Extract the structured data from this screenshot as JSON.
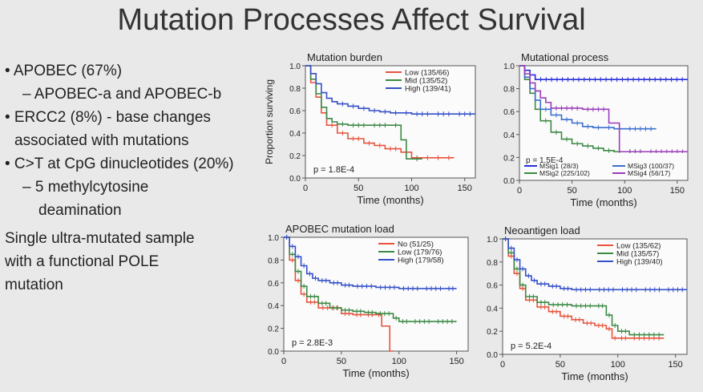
{
  "slide": {
    "title": "Mutation Processes Affect Survival",
    "bullets": [
      {
        "kind": "bullet",
        "text": "APOBEC (67%)"
      },
      {
        "kind": "dash",
        "text": "APOBEC-a and APOBEC-b"
      },
      {
        "kind": "bullet",
        "text": "ERCC2 (8%)  - base changes"
      },
      {
        "kind": "cont",
        "text": "associated with mutations"
      },
      {
        "kind": "bullet",
        "text": "C>T at CpG dinucleotides (20%)"
      },
      {
        "kind": "dash",
        "text": "5 methylcytosine"
      },
      {
        "kind": "cont2",
        "text": "deamination"
      },
      {
        "kind": "plain",
        "text": "Single ultra-mutated sample"
      },
      {
        "kind": "plain",
        "text": "with a functional POLE"
      },
      {
        "kind": "plain",
        "text": "mutation"
      }
    ]
  },
  "chart_data": [
    {
      "type": "line",
      "title": "Mutation burden",
      "xlabel": "Time (months)",
      "ylabel": "Proportion surviving",
      "xlim": [
        0,
        160
      ],
      "ylim": [
        0,
        1
      ],
      "xticks": [
        0,
        50,
        100,
        150
      ],
      "yticks": [
        "0.0",
        "0.2",
        "0.4",
        "0.6",
        "0.8",
        "1.0"
      ],
      "pvalue": "p = 1.8E-4",
      "series": [
        {
          "name": "Low (135/66)",
          "color": "#e8533d",
          "x": [
            0,
            5,
            10,
            15,
            20,
            30,
            40,
            55,
            65,
            75,
            90,
            100,
            110,
            120,
            130,
            140
          ],
          "y": [
            1.0,
            0.85,
            0.72,
            0.58,
            0.47,
            0.4,
            0.35,
            0.31,
            0.29,
            0.26,
            0.23,
            0.18,
            0.18,
            0.18,
            0.18,
            0.18
          ]
        },
        {
          "name": "Mid (135/52)",
          "color": "#3c8a46",
          "x": [
            0,
            5,
            10,
            15,
            20,
            25,
            30,
            40,
            60,
            80,
            90,
            95,
            100,
            110
          ],
          "y": [
            1.0,
            0.88,
            0.75,
            0.63,
            0.53,
            0.5,
            0.48,
            0.47,
            0.47,
            0.47,
            0.34,
            0.17,
            0.17,
            0.17
          ]
        },
        {
          "name": "High (139/41)",
          "color": "#3550c8",
          "x": [
            0,
            5,
            10,
            15,
            20,
            25,
            30,
            40,
            50,
            60,
            70,
            80,
            90,
            100,
            120,
            140,
            160
          ],
          "y": [
            1.0,
            0.93,
            0.84,
            0.76,
            0.71,
            0.68,
            0.66,
            0.64,
            0.62,
            0.6,
            0.59,
            0.58,
            0.58,
            0.57,
            0.57,
            0.57,
            0.57
          ]
        }
      ]
    },
    {
      "type": "line",
      "title": "Mutational process",
      "xlabel": "Time (months)",
      "ylabel": "",
      "xlim": [
        0,
        160
      ],
      "ylim": [
        0,
        1
      ],
      "xticks": [
        0,
        50,
        100,
        150
      ],
      "yticks": [
        "0.0",
        "0.2",
        "0.4",
        "0.6",
        "0.8",
        "1.0"
      ],
      "pvalue": "p = 1.5E-4",
      "series": [
        {
          "name": "MSig1 (28/3)",
          "color": "#2a2fd6",
          "x": [
            0,
            5,
            10,
            15,
            160
          ],
          "y": [
            1.0,
            0.96,
            0.92,
            0.88,
            0.88
          ]
        },
        {
          "name": "MSig2 (225/102)",
          "color": "#3c8a46",
          "x": [
            0,
            5,
            10,
            15,
            20,
            30,
            40,
            50,
            60,
            70,
            80,
            90,
            100,
            120
          ],
          "y": [
            1.0,
            0.88,
            0.76,
            0.62,
            0.52,
            0.42,
            0.36,
            0.32,
            0.3,
            0.28,
            0.26,
            0.25,
            0.25,
            0.25
          ]
        },
        {
          "name": "MSig3 (100/37)",
          "color": "#3b6fd0",
          "x": [
            0,
            5,
            10,
            15,
            20,
            30,
            40,
            50,
            60,
            70,
            80,
            90,
            100,
            130
          ],
          "y": [
            1.0,
            0.9,
            0.8,
            0.7,
            0.62,
            0.57,
            0.53,
            0.5,
            0.47,
            0.46,
            0.46,
            0.45,
            0.45,
            0.45
          ]
        },
        {
          "name": "MSig4 (56/17)",
          "color": "#9a3db8",
          "x": [
            0,
            5,
            10,
            15,
            20,
            25,
            30,
            60,
            85,
            90,
            95,
            100,
            120,
            160
          ],
          "y": [
            1.0,
            0.93,
            0.85,
            0.78,
            0.72,
            0.68,
            0.63,
            0.62,
            0.5,
            0.5,
            0.25,
            0.25,
            0.25,
            0.25
          ]
        }
      ]
    },
    {
      "type": "line",
      "title": "APOBEC mutation load",
      "xlabel": "Time (months)",
      "ylabel": "",
      "xlim": [
        0,
        160
      ],
      "ylim": [
        0,
        1
      ],
      "xticks": [
        0,
        50,
        100,
        150
      ],
      "yticks": [
        "0.0",
        "0.2",
        "0.4",
        "0.6",
        "0.8",
        "1.0"
      ],
      "pvalue": "p = 2.8E-3",
      "series": [
        {
          "name": "No (51/25)",
          "color": "#e8533d",
          "x": [
            0,
            5,
            10,
            15,
            20,
            30,
            50,
            60,
            70,
            80,
            85,
            88,
            92,
            95
          ],
          "y": [
            1.0,
            0.8,
            0.62,
            0.5,
            0.43,
            0.38,
            0.33,
            0.32,
            0.32,
            0.32,
            0.22,
            0.22,
            0.0,
            0.0
          ]
        },
        {
          "name": "Low (179/76)",
          "color": "#3c8a46",
          "x": [
            0,
            5,
            10,
            15,
            20,
            30,
            40,
            50,
            60,
            70,
            80,
            95,
            100,
            110,
            130,
            150
          ],
          "y": [
            1.0,
            0.85,
            0.7,
            0.57,
            0.48,
            0.42,
            0.38,
            0.36,
            0.35,
            0.34,
            0.33,
            0.29,
            0.26,
            0.26,
            0.26,
            0.26
          ]
        },
        {
          "name": "High (179/58)",
          "color": "#3550c8",
          "x": [
            0,
            5,
            10,
            15,
            20,
            25,
            30,
            40,
            50,
            60,
            80,
            100,
            120,
            140,
            150
          ],
          "y": [
            1.0,
            0.92,
            0.83,
            0.75,
            0.68,
            0.64,
            0.62,
            0.6,
            0.58,
            0.57,
            0.56,
            0.55,
            0.55,
            0.55,
            0.55
          ]
        }
      ]
    },
    {
      "type": "line",
      "title": "Neoantigen load",
      "xlabel": "Time (months)",
      "ylabel": "",
      "xlim": [
        0,
        160
      ],
      "ylim": [
        0,
        1
      ],
      "xticks": [
        0,
        50,
        100,
        150
      ],
      "yticks": [
        "0.0",
        "0.2",
        "0.4",
        "0.6",
        "0.8",
        "1.0"
      ],
      "pvalue": "p = 5.2E-4",
      "series": [
        {
          "name": "Low (135/62)",
          "color": "#e8533d",
          "x": [
            0,
            5,
            10,
            15,
            20,
            30,
            40,
            50,
            60,
            70,
            80,
            90,
            95,
            100,
            110,
            140
          ],
          "y": [
            1.0,
            0.85,
            0.7,
            0.57,
            0.47,
            0.41,
            0.37,
            0.33,
            0.3,
            0.27,
            0.25,
            0.22,
            0.14,
            0.14,
            0.14,
            0.14
          ]
        },
        {
          "name": "Mid (135/57)",
          "color": "#3c8a46",
          "x": [
            0,
            5,
            10,
            15,
            20,
            30,
            40,
            60,
            80,
            90,
            95,
            100,
            110,
            140
          ],
          "y": [
            1.0,
            0.88,
            0.74,
            0.6,
            0.5,
            0.45,
            0.43,
            0.42,
            0.42,
            0.34,
            0.25,
            0.2,
            0.17,
            0.17
          ]
        },
        {
          "name": "High (139/40)",
          "color": "#3550c8",
          "x": [
            0,
            5,
            10,
            15,
            20,
            25,
            30,
            40,
            50,
            60,
            80,
            100,
            120,
            140,
            160
          ],
          "y": [
            1.0,
            0.92,
            0.82,
            0.74,
            0.68,
            0.64,
            0.61,
            0.59,
            0.57,
            0.56,
            0.56,
            0.56,
            0.56,
            0.56,
            0.56
          ]
        }
      ]
    }
  ]
}
